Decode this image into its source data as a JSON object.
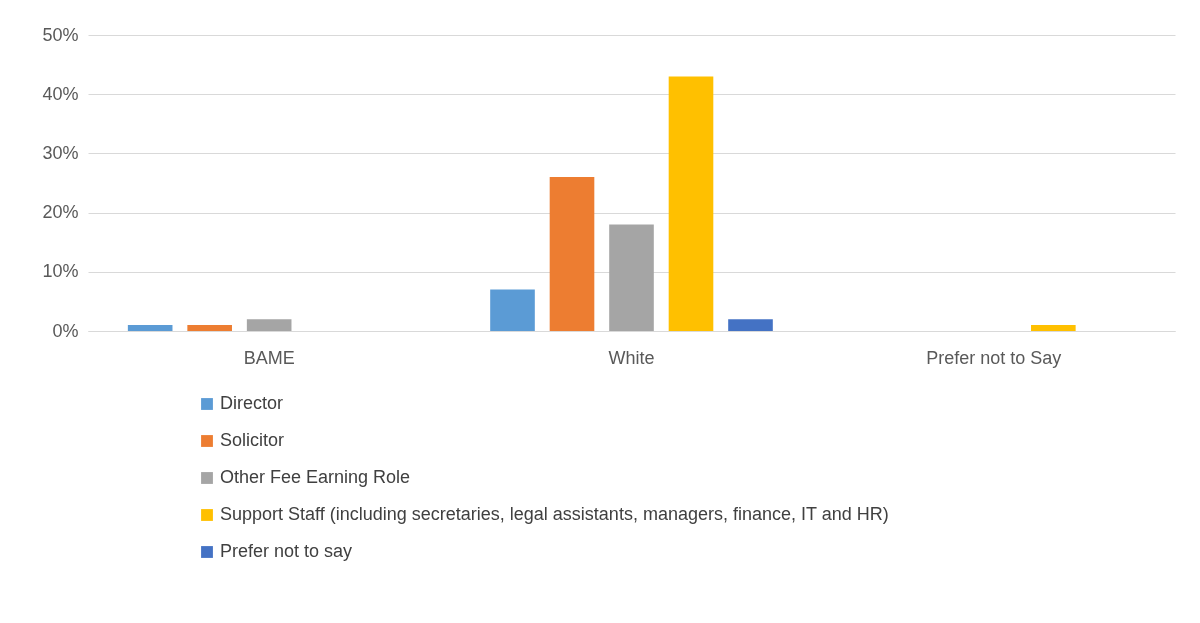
{
  "chart_data": {
    "type": "bar",
    "categories": [
      "BAME",
      "White",
      "Prefer not to Say"
    ],
    "series": [
      {
        "name": "Director",
        "color": "#5b9bd5",
        "values": [
          1,
          7,
          0
        ]
      },
      {
        "name": "Solicitor",
        "color": "#ed7d31",
        "values": [
          1,
          26,
          0
        ]
      },
      {
        "name": "Other Fee Earning Role",
        "color": "#a5a5a5",
        "values": [
          2,
          18,
          0
        ]
      },
      {
        "name": "Support Staff (including secretaries, legal assistants, managers, finance, IT and HR)",
        "color": "#ffc000",
        "values": [
          0,
          43,
          1
        ]
      },
      {
        "name": "Prefer not to say",
        "color": "#4472c4",
        "values": [
          0,
          2,
          0
        ]
      }
    ],
    "ylim": [
      0,
      50
    ],
    "yticks": [
      {
        "value": 0,
        "label": "0%"
      },
      {
        "value": 10,
        "label": "10%"
      },
      {
        "value": 20,
        "label": "20%"
      },
      {
        "value": 30,
        "label": "30%"
      },
      {
        "value": 40,
        "label": "40%"
      },
      {
        "value": 50,
        "label": "50%"
      }
    ],
    "grid": "y",
    "legend": "bottom"
  }
}
